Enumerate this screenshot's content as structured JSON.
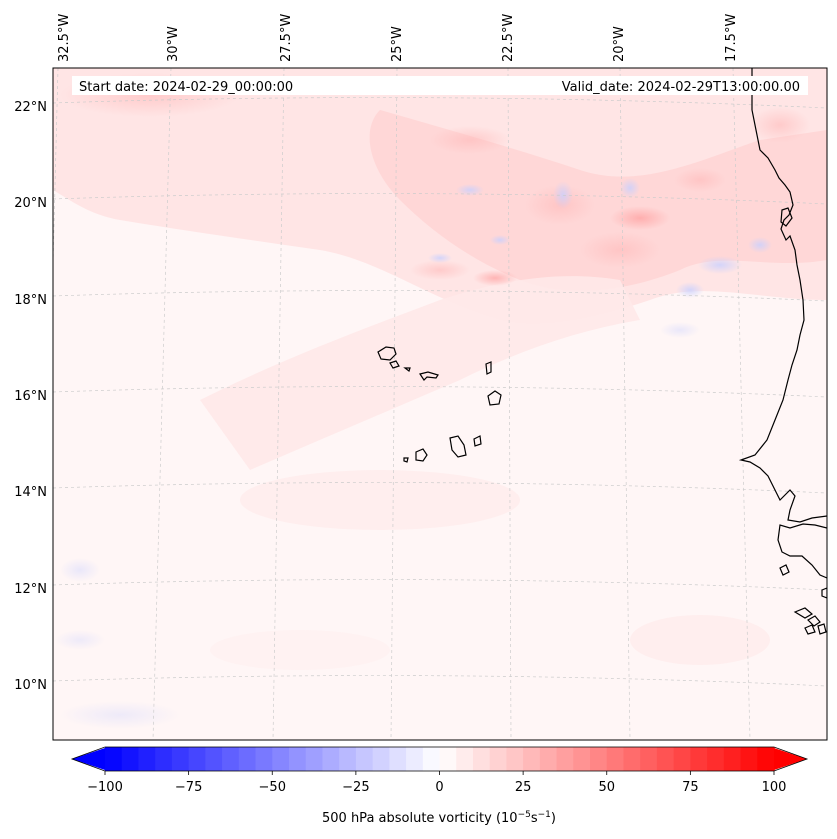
{
  "map": {
    "start_label": "Start date: 2024-02-29_00:00:00",
    "valid_label": "Valid_date: 2024-02-29T13:00:00.00",
    "lon_ticks": [
      "32.5°W",
      "30°W",
      "27.5°W",
      "25°W",
      "22.5°W",
      "20°W",
      "17.5°W"
    ],
    "lat_ticks": [
      "22°N",
      "20°N",
      "18°N",
      "16°N",
      "14°N",
      "12°N",
      "10°N"
    ]
  },
  "colorbar": {
    "label_text": "500 hPa absolute vorticity (10",
    "label_exp1": "−5",
    "label_mid": "s",
    "label_exp2": "−1",
    "label_close": ")",
    "ticks": [
      "−100",
      "−75",
      "−50",
      "−25",
      "0",
      "25",
      "50",
      "75",
      "100"
    ],
    "vmin": -100,
    "vmax": 100,
    "n_levels": 40,
    "neg_color": "#0000ff",
    "zero_color": "#ffffff",
    "pos_color": "#ff0000"
  },
  "colors": {
    "coast": "#000000",
    "grid": "#cccccc",
    "background_field": "#fff6f6"
  }
}
